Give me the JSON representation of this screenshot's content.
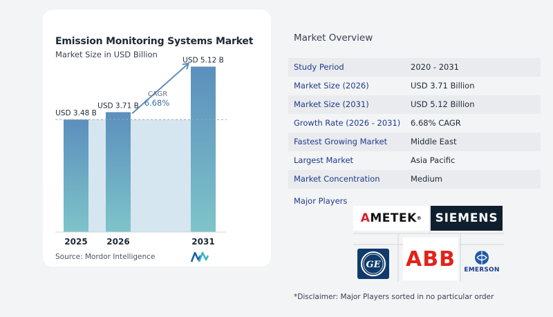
{
  "chart_data": {
    "type": "bar",
    "title": "Emission Monitoring Systems Market",
    "subtitle": "Market Size in USD Billion",
    "categories": [
      "2025",
      "2026",
      "2031"
    ],
    "values": [
      3.48,
      3.71,
      5.12
    ],
    "data_labels": [
      "USD 3.48 B",
      "USD 3.71 B",
      "USD 5.12 B"
    ],
    "ylim": [
      0,
      5.6
    ],
    "cagr_label": "CAGR",
    "cagr_value": "6.68%",
    "bar_color_top": "#5b8fbd",
    "bar_color_bottom": "#7ec4c9",
    "band_color": "#d6e6f0",
    "arrow_color": "#5b8fbd"
  },
  "source": "Source:  Mordor Intelligence",
  "overview": {
    "title": "Market Overview",
    "rows": [
      {
        "label": "Study Period",
        "value": "2020 - 2031"
      },
      {
        "label": "Market Size (2026)",
        "value": "USD 3.71 Billion"
      },
      {
        "label": "Market Size (2031)",
        "value": "USD 5.12 Billion"
      },
      {
        "label": "Growth Rate (2026 - 2031)",
        "value": "6.68% CAGR"
      },
      {
        "label": "Fastest Growing Market",
        "value": "Middle East"
      },
      {
        "label": "Largest Market",
        "value": "Asia Pacific"
      },
      {
        "label": "Market Concentration",
        "value": "Medium"
      }
    ],
    "players_label": "Major Players"
  },
  "players": {
    "ametek_a": "A",
    "ametek_rest": "METEK",
    "ametek_mark": "®",
    "siemens": "SIEMENS",
    "ge": "GE",
    "abb": "ABB",
    "emerson": "EMERSON"
  },
  "disclaimer": "*Disclaimer: Major Players sorted in no particular order"
}
